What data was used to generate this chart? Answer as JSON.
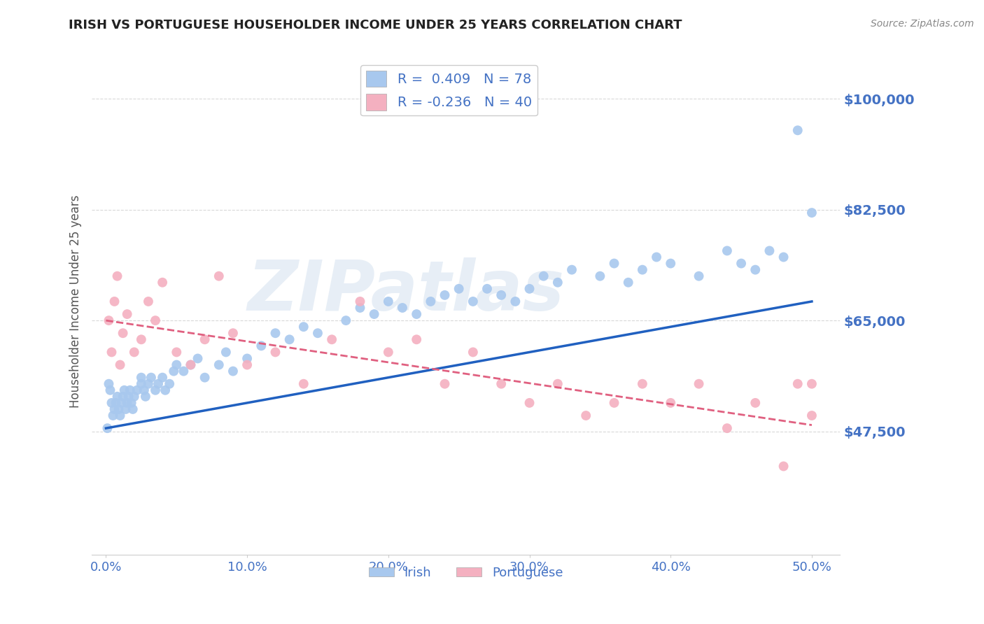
{
  "title": "IRISH VS PORTUGUESE HOUSEHOLDER INCOME UNDER 25 YEARS CORRELATION CHART",
  "source": "Source: ZipAtlas.com",
  "ylabel": "Householder Income Under 25 years",
  "xlabel_ticks": [
    "0.0%",
    "10.0%",
    "20.0%",
    "30.0%",
    "40.0%",
    "50.0%"
  ],
  "xlabel_vals": [
    0.0,
    0.1,
    0.2,
    0.3,
    0.4,
    0.5
  ],
  "yticks": [
    47500,
    65000,
    82500,
    100000
  ],
  "ytick_labels": [
    "$47,500",
    "$65,000",
    "$82,500",
    "$100,000"
  ],
  "ylim": [
    28000,
    108000
  ],
  "xlim": [
    -0.01,
    0.52
  ],
  "irish_color": "#a8c8ee",
  "portuguese_color": "#f4b0c0",
  "irish_line_color": "#2060c0",
  "portuguese_line_color": "#e06080",
  "R_irish": 0.409,
  "N_irish": 78,
  "R_portuguese": -0.236,
  "N_portuguese": 40,
  "legend_labels": [
    "Irish",
    "Portuguese"
  ],
  "background_color": "#ffffff",
  "grid_color": "#d0d0d0",
  "axis_label_color": "#4472c4",
  "title_color": "#222222",
  "watermark_text": "ZIPatlas",
  "irish_x": [
    0.001,
    0.002,
    0.003,
    0.004,
    0.005,
    0.006,
    0.007,
    0.008,
    0.009,
    0.01,
    0.011,
    0.012,
    0.013,
    0.014,
    0.015,
    0.016,
    0.017,
    0.018,
    0.019,
    0.02,
    0.022,
    0.025,
    0.025,
    0.027,
    0.028,
    0.03,
    0.032,
    0.035,
    0.037,
    0.04,
    0.042,
    0.045,
    0.048,
    0.05,
    0.055,
    0.06,
    0.065,
    0.07,
    0.08,
    0.085,
    0.09,
    0.1,
    0.11,
    0.12,
    0.13,
    0.14,
    0.15,
    0.17,
    0.18,
    0.19,
    0.2,
    0.21,
    0.22,
    0.23,
    0.24,
    0.25,
    0.26,
    0.27,
    0.28,
    0.29,
    0.3,
    0.31,
    0.32,
    0.33,
    0.35,
    0.36,
    0.37,
    0.38,
    0.39,
    0.4,
    0.42,
    0.44,
    0.45,
    0.46,
    0.47,
    0.48,
    0.49,
    0.5
  ],
  "irish_y": [
    48000,
    55000,
    54000,
    52000,
    50000,
    51000,
    52000,
    53000,
    51000,
    50000,
    52000,
    53000,
    54000,
    51000,
    52000,
    53000,
    54000,
    52000,
    51000,
    53000,
    54000,
    55000,
    56000,
    54000,
    53000,
    55000,
    56000,
    54000,
    55000,
    56000,
    54000,
    55000,
    57000,
    58000,
    57000,
    58000,
    59000,
    56000,
    58000,
    60000,
    57000,
    59000,
    61000,
    63000,
    62000,
    64000,
    63000,
    65000,
    67000,
    66000,
    68000,
    67000,
    66000,
    68000,
    69000,
    70000,
    68000,
    70000,
    69000,
    68000,
    70000,
    72000,
    71000,
    73000,
    72000,
    74000,
    71000,
    73000,
    75000,
    74000,
    72000,
    76000,
    74000,
    73000,
    76000,
    75000,
    95000,
    82000
  ],
  "portuguese_x": [
    0.002,
    0.004,
    0.006,
    0.008,
    0.01,
    0.012,
    0.015,
    0.02,
    0.025,
    0.03,
    0.035,
    0.04,
    0.05,
    0.06,
    0.07,
    0.08,
    0.09,
    0.1,
    0.12,
    0.14,
    0.16,
    0.18,
    0.2,
    0.22,
    0.24,
    0.26,
    0.28,
    0.3,
    0.32,
    0.34,
    0.36,
    0.38,
    0.4,
    0.42,
    0.44,
    0.46,
    0.48,
    0.49,
    0.5,
    0.5
  ],
  "portuguese_y": [
    65000,
    60000,
    68000,
    72000,
    58000,
    63000,
    66000,
    60000,
    62000,
    68000,
    65000,
    71000,
    60000,
    58000,
    62000,
    72000,
    63000,
    58000,
    60000,
    55000,
    62000,
    68000,
    60000,
    62000,
    55000,
    60000,
    55000,
    52000,
    55000,
    50000,
    52000,
    55000,
    52000,
    55000,
    48000,
    52000,
    42000,
    55000,
    50000,
    55000
  ],
  "irish_trend_x0": 0.0,
  "irish_trend_x1": 0.5,
  "irish_trend_y0": 48000,
  "irish_trend_y1": 68000,
  "port_trend_x0": 0.0,
  "port_trend_x1": 0.5,
  "port_trend_y0": 65000,
  "port_trend_y1": 48500
}
